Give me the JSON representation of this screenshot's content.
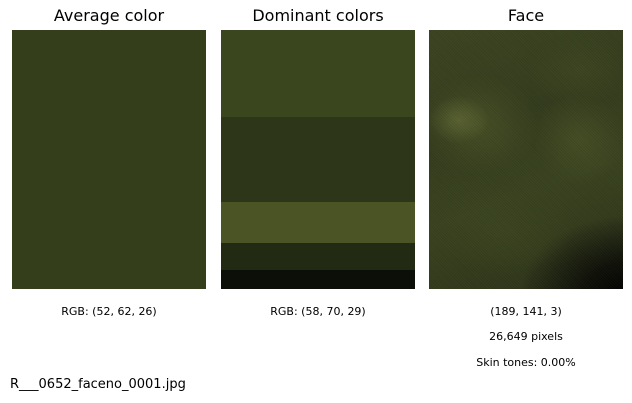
{
  "panels": {
    "average": {
      "title": "Average color",
      "swatch_color": "#343e1a",
      "rgb_label": "RGB: (52, 62, 26)"
    },
    "dominant": {
      "title": "Dominant colors",
      "bands": [
        {
          "color": "#3a461d",
          "fraction": 0.335
        },
        {
          "color": "#2e3619",
          "fraction": 0.33
        },
        {
          "color": "#4a5425",
          "fraction": 0.16
        },
        {
          "color": "#232a13",
          "fraction": 0.105
        },
        {
          "color": "#0c0f07",
          "fraction": 0.07
        }
      ],
      "rgb_label": "RGB: (58, 70, 29)"
    },
    "face": {
      "title": "Face",
      "rgb_label": "(189, 141, 3)",
      "pixels_label": "26,649 pixels",
      "skin_label": "Skin tones: 0.00%"
    }
  },
  "filename": "R___0652_faceno_0001.jpg"
}
